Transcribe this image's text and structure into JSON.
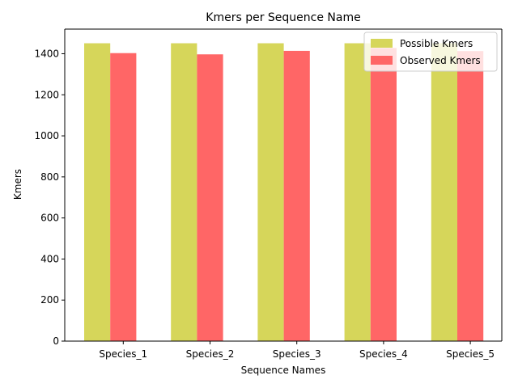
{
  "chart_data": {
    "type": "bar",
    "title": "Kmers per Sequence Name",
    "xlabel": "Sequence Names",
    "ylabel": "Kmers",
    "categories": [
      "Species_1",
      "Species_2",
      "Species_3",
      "Species_4",
      "Species_5"
    ],
    "series": [
      {
        "name": "Possible Kmers",
        "color": "#d6d65a",
        "values": [
          1451,
          1451,
          1451,
          1451,
          1451
        ]
      },
      {
        "name": "Observed Kmers",
        "color": "#ff6666",
        "values": [
          1403,
          1397,
          1414,
          1428,
          1413
        ]
      }
    ],
    "ylim": [
      0,
      1520
    ],
    "yticks": [
      0,
      200,
      400,
      600,
      800,
      1000,
      1200,
      1400
    ],
    "grid": false,
    "legend": "top-right"
  }
}
